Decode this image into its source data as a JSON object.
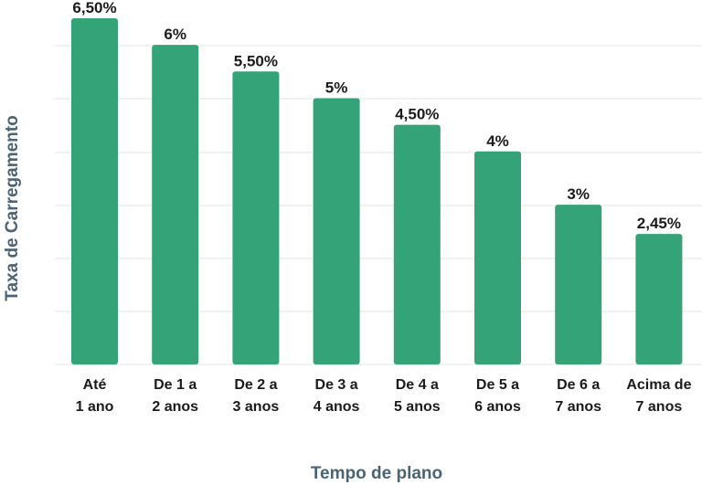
{
  "chart_data": {
    "type": "bar",
    "categories": [
      [
        "Até",
        "1 ano"
      ],
      [
        "De 1 a",
        "2 anos"
      ],
      [
        "De 2 a",
        "3 anos"
      ],
      [
        "De 3 a",
        "4 anos"
      ],
      [
        "De 4 a",
        "5 anos"
      ],
      [
        "De 5 a",
        "6 anos"
      ],
      [
        "De 6 a",
        "7 anos"
      ],
      [
        "Acima de",
        "7 anos"
      ]
    ],
    "values": [
      6.5,
      6,
      5.5,
      5,
      4.5,
      4,
      3,
      2.45
    ],
    "value_labels": [
      "6,50%",
      "6%",
      "5,50%",
      "5%",
      "4,50%",
      "4%",
      "3%",
      "2,45%"
    ],
    "xlabel": "Tempo de plano",
    "ylabel": "Taxa de Carregamento",
    "ylim": [
      0,
      6.5
    ],
    "grid": true,
    "legend": "none",
    "colors": {
      "bar": "#35a378",
      "axis_title": "#4a6375",
      "label": "#1b1b1b",
      "grid": "#e3e6e9"
    }
  }
}
